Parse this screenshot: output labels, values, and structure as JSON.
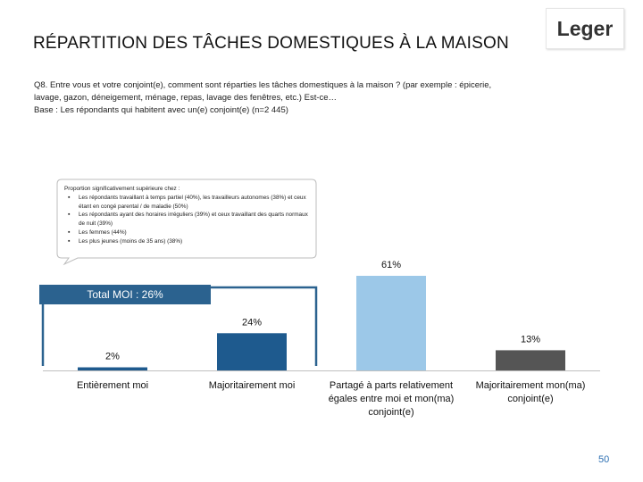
{
  "slide": {
    "title": "RÉPARTITION DES TÂCHES DOMESTIQUES À LA MAISON",
    "logo_text": "Leger",
    "page_number": "50"
  },
  "question": {
    "line1": "Q8. Entre vous et votre conjoint(e), comment sont réparties les tâches domestiques à la maison ? (par exemple : épicerie,",
    "line2": "lavage, gazon, déneigement, ménage, repas, lavage des fenêtres, etc.) Est-ce…",
    "base": "Base : Les répondants qui habitent avec un(e) conjoint(e) (n=2 445)"
  },
  "callout": {
    "heading": "Proportion significativement supérieure chez :",
    "items": [
      "Les répondants travaillant à temps partiel (40%), les travailleurs autonomes (38%) et ceux étant en congé parental / de maladie (50%)",
      "Les répondants ayant des horaires irréguliers (39%) et ceux travaillant des quarts normaux de nuit (39%)",
      "Les femmes (44%)",
      "Les plus jeunes (moins de 35 ans) (38%)"
    ]
  },
  "total_label": "Total MOI : 26%",
  "colors": {
    "entierement": "#1e5a8e",
    "majoritairement_moi": "#1e5a8e",
    "partage": "#9cc8e8",
    "conjoint": "#555555",
    "total_box": "#2b628f",
    "bracket": "#2b628f"
  },
  "chart_data": {
    "type": "bar",
    "categories": [
      "Entièrement moi",
      "Majoritairement moi",
      "Partagé à parts relativement égales entre moi et mon(ma) conjoint(e)",
      "Majoritairement mon(ma) conjoint(e)"
    ],
    "category_lines": [
      [
        "Entièrement moi"
      ],
      [
        "Majoritairement moi"
      ],
      [
        "Partagé à parts relativement",
        "égales entre moi et mon(ma)",
        "conjoint(e)"
      ],
      [
        "Majoritairement mon(ma)",
        "conjoint(e)"
      ]
    ],
    "values": [
      2,
      24,
      61,
      13
    ],
    "value_labels": [
      "2%",
      "24%",
      "61%",
      "13%"
    ],
    "ylim": [
      0,
      61
    ],
    "grid": false
  }
}
